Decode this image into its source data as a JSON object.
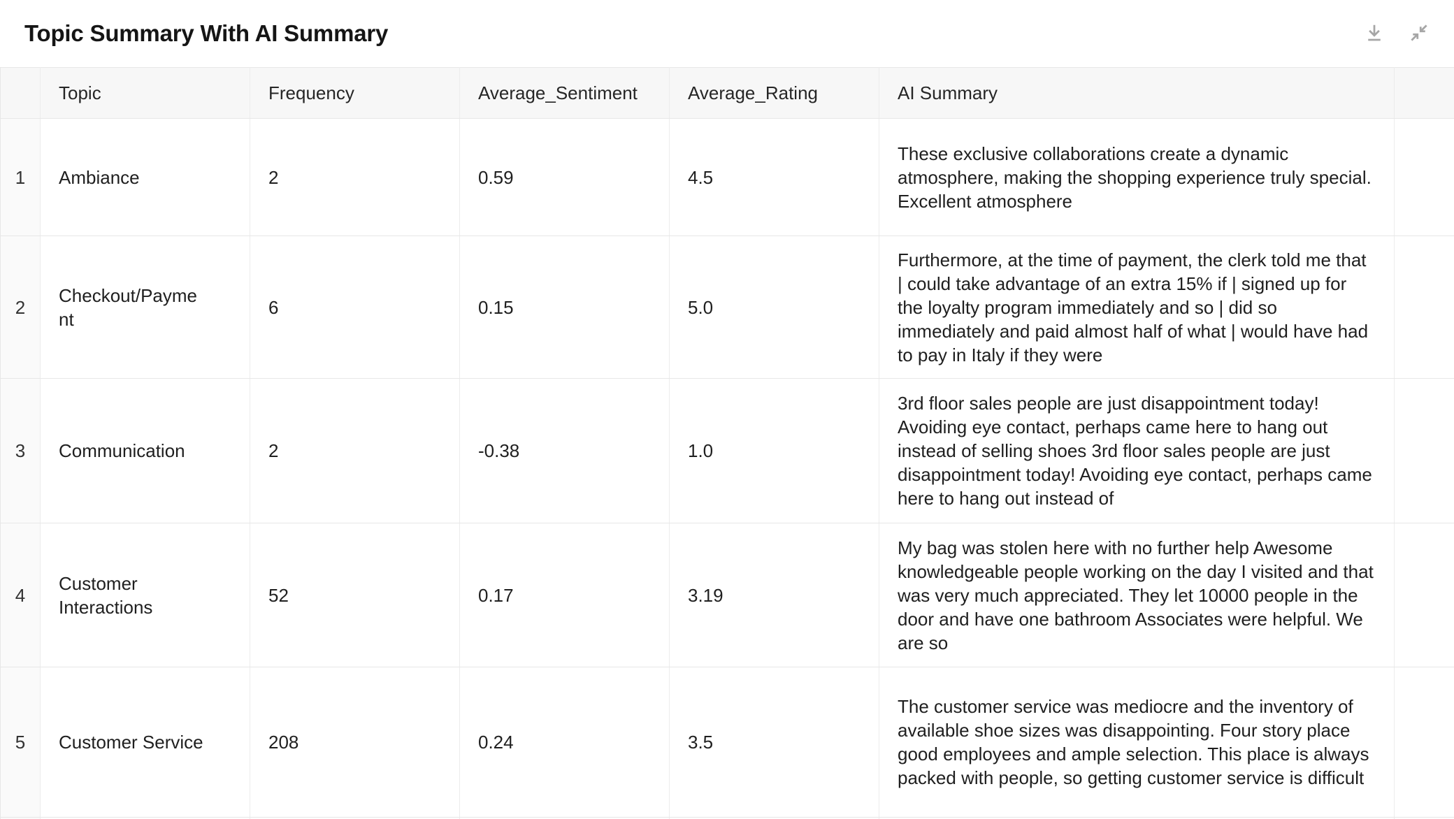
{
  "header": {
    "title": "Topic Summary With AI Summary",
    "icons": [
      {
        "name": "download-icon"
      },
      {
        "name": "collapse-icon"
      }
    ]
  },
  "colors": {
    "header_background": "#f7f7f7",
    "index_column_background": "#fafafa",
    "border": "#e7e7e7",
    "text": "#1f1f1f",
    "title_text": "#151515",
    "icon_gray": "#a6a6a6"
  },
  "table": {
    "columns": [
      "",
      "Topic",
      "Frequency",
      "Average_Sentiment",
      "Average_Rating",
      "AI Summary",
      ""
    ],
    "rows": [
      {
        "index": "1",
        "topic": "Ambiance",
        "frequency": "2",
        "sentiment": "0.59",
        "rating": "4.5",
        "summary": "These exclusive collaborations create a dynamic atmosphere, making the shopping experience truly special. Excellent atmosphere"
      },
      {
        "index": "2",
        "topic": "Checkout/Payment",
        "frequency": "6",
        "sentiment": "0.15",
        "rating": "5.0",
        "summary": "Furthermore, at the time of payment, the clerk told me that | could take advantage of an extra 15% if | signed up for the loyalty program immediately and so | did so immediately and paid almost half of what | would have had to pay in Italy if they were"
      },
      {
        "index": "3",
        "topic": "Communication",
        "frequency": "2",
        "sentiment": "-0.38",
        "rating": "1.0",
        "summary": "3rd floor sales people are just disappointment today! Avoiding eye contact, perhaps came here to hang out instead of selling shoes 3rd floor sales people are just disappointment today! Avoiding eye contact, perhaps came here to hang out instead of"
      },
      {
        "index": "4",
        "topic": "Customer Interactions",
        "frequency": "52",
        "sentiment": "0.17",
        "rating": "3.19",
        "summary": "My bag was stolen here with no further help Awesome knowledgeable people working on the day I visited and that was very much appreciated. They let 10000 people in the door and have one bathroom Associates were helpful. We are so"
      },
      {
        "index": "5",
        "topic": "Customer Service",
        "frequency": "208",
        "sentiment": "0.24",
        "rating": "3.5",
        "summary": "The customer service was mediocre and the inventory of available shoe sizes was disappointing. Four story place good employees and ample selection. This place is always packed with people, so getting customer service is difficult"
      }
    ]
  }
}
